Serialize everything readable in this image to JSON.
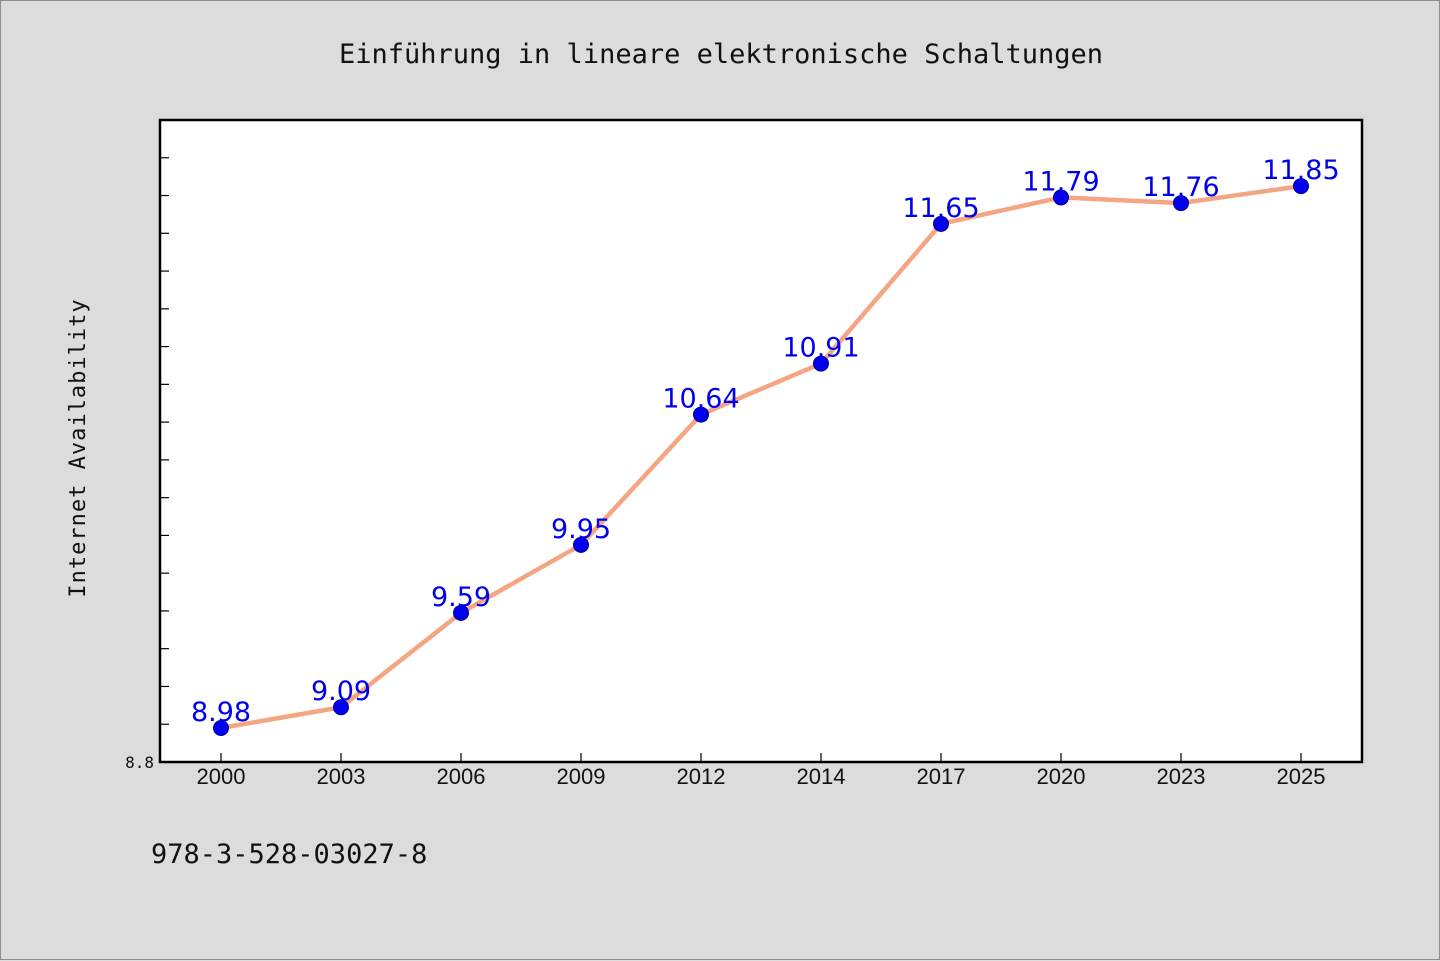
{
  "chart_data": {
    "type": "line",
    "title": "Einführung in lineare elektronische Schaltungen",
    "xlabel": "",
    "ylabel": "Internet Availability",
    "categories": [
      "2000",
      "2003",
      "2006",
      "2009",
      "2012",
      "2014",
      "2017",
      "2020",
      "2023",
      "2025"
    ],
    "series": [
      {
        "values": [
          8.98,
          9.09,
          9.59,
          9.95,
          10.64,
          10.91,
          11.65,
          11.79,
          11.76,
          11.85
        ],
        "labels": [
          "8.98",
          "9.09",
          "9.59",
          "9.95",
          "10.64",
          "10.91",
          "11.65",
          "11.79",
          "11.76",
          "11.85"
        ]
      }
    ],
    "ylim": [
      8.8,
      12.2
    ],
    "ytick_labels": [
      "8.8"
    ],
    "grid": false,
    "colors": {
      "line": "#f4a582",
      "marker": "#0000ee",
      "label": "#0000ee",
      "plot_bg": "#ffffff",
      "page_bg": "#dcdcdc"
    }
  },
  "footer": {
    "isbn": "978-3-528-03027-8"
  }
}
